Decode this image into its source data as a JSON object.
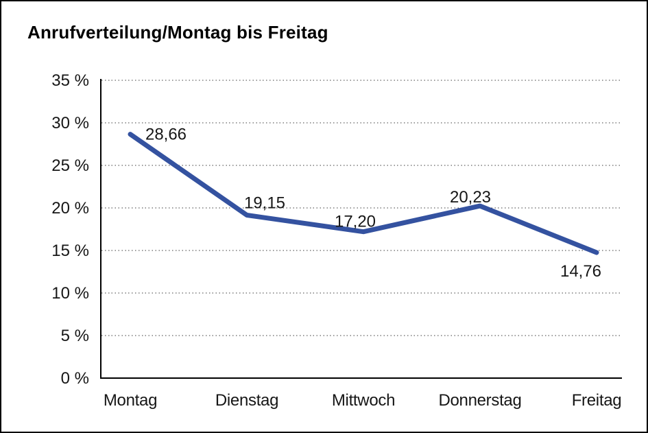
{
  "title": "Anrufverteilung/Montag bis Freitag",
  "chart_data": {
    "type": "line",
    "title": "Anrufverteilung/Montag bis Freitag",
    "categories": [
      "Montag",
      "Dienstag",
      "Mittwoch",
      "Donnerstag",
      "Freitag"
    ],
    "values": [
      28.66,
      19.15,
      17.2,
      20.23,
      14.76
    ],
    "point_labels": [
      "28,66",
      "19,15",
      "17,20",
      "20,23",
      "14,76"
    ],
    "xlabel": "",
    "ylabel": "",
    "ylim": [
      0,
      35
    ],
    "ytick_step": 5,
    "ytick_labels": [
      "0 %",
      "5 %",
      "10 %",
      "15 %",
      "20 %",
      "25 %",
      "30 %",
      "35 %"
    ],
    "grid": "horizontal-dotted",
    "legend": "none",
    "line_color": "#3452A0",
    "axis_color": "#000000",
    "grid_color": "#3a3a3a",
    "text_color": "#161616",
    "background_color": "#ffffff",
    "border_color": "#000000"
  }
}
